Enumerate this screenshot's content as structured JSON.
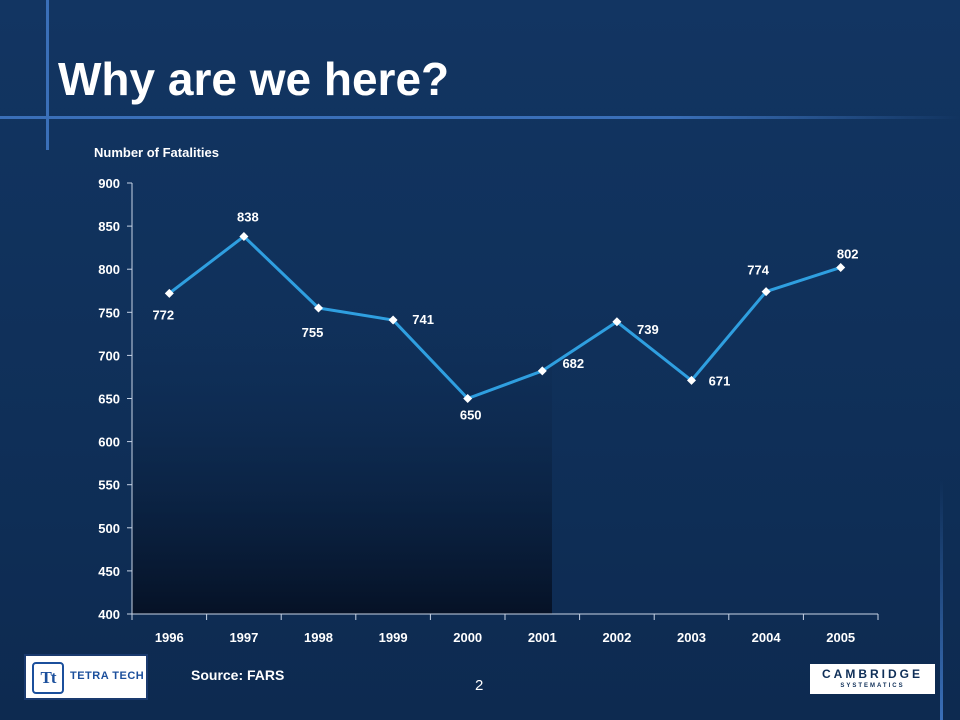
{
  "slide": {
    "title": "Why are we here?",
    "source": "Source:  FARS",
    "page_number": "2"
  },
  "logos": {
    "left_mark": "Tt",
    "left_name": "TETRA TECH",
    "right_name": "CAMBRIDGE",
    "right_sub": "SYSTEMATICS"
  },
  "colors": {
    "background": "#0f2f58",
    "accent_line": "#3a6fb8",
    "series_line": "#2f9fe0",
    "marker": "#ffffff",
    "text": "#ffffff"
  },
  "chart_data": {
    "type": "line",
    "ylabel": "Number of Fatalities",
    "ylim": [
      400,
      900
    ],
    "ytick_step": 50,
    "categories": [
      "1996",
      "1997",
      "1998",
      "1999",
      "2000",
      "2001",
      "2002",
      "2003",
      "2004",
      "2005"
    ],
    "series": [
      {
        "values": [
          772,
          838,
          755,
          741,
          650,
          682,
          739,
          671,
          774,
          802
        ]
      }
    ],
    "data_labels": [
      "772",
      "838",
      "755",
      "741",
      "650",
      "682",
      "739",
      "671",
      "774",
      "802"
    ],
    "grid": false,
    "legend": "none"
  }
}
